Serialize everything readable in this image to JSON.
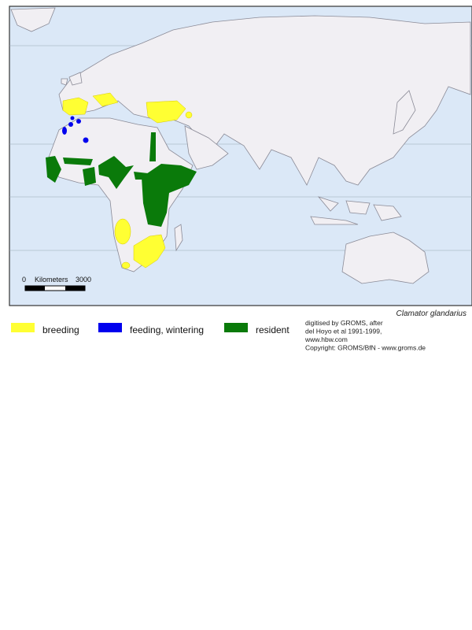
{
  "map": {
    "species": "Clamator glandarius",
    "scale": {
      "start": "0",
      "unit": "Kilometers",
      "end": "3000"
    },
    "legend": [
      {
        "label": "breeding",
        "color": "#ffff33"
      },
      {
        "label": "feeding, wintering",
        "color": "#0000ee"
      },
      {
        "label": "resident",
        "color": "#0a7a0a"
      }
    ],
    "credits": [
      "digitised by GROMS, after",
      "del Hoyo et al 1991-1999,",
      "www.hbw.com",
      "Copyright: GROMS/BfN - www.groms.de"
    ]
  }
}
